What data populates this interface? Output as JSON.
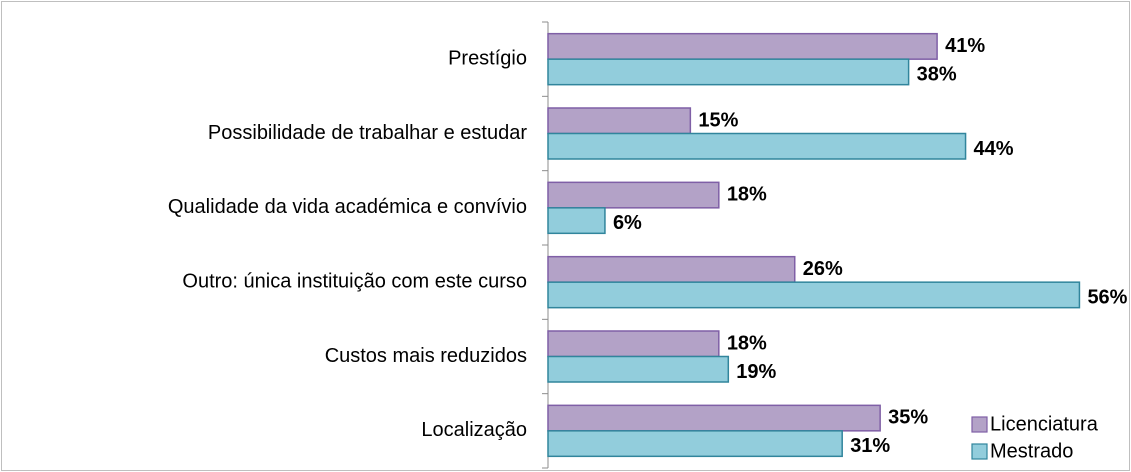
{
  "chart_data": {
    "type": "bar",
    "orientation": "horizontal",
    "categories": [
      "Prestígio",
      "Possibilidade de trabalhar e estudar",
      "Qualidade da vida académica e convívio",
      "Outro: única instituição com este curso",
      "Custos mais reduzidos",
      "Localização"
    ],
    "series": [
      {
        "name": "Licenciatura",
        "color": "#b3a2c7",
        "values": [
          41,
          15,
          18,
          26,
          18,
          35
        ],
        "value_labels": [
          "41%",
          "15%",
          "18%",
          "26%",
          "18%",
          "35%"
        ]
      },
      {
        "name": "Mestrado",
        "color": "#92cddc",
        "values": [
          38,
          44,
          6,
          56,
          19,
          31
        ],
        "value_labels": [
          "38%",
          "44%",
          "6%",
          "56%",
          "19%",
          "31%"
        ]
      }
    ],
    "legend": "bottom-right"
  }
}
